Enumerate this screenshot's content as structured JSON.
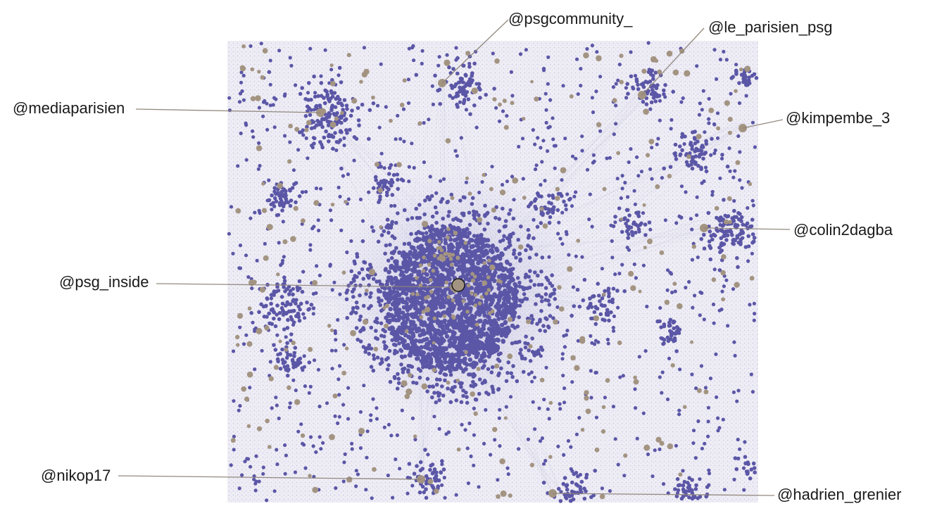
{
  "colors": {
    "background": "#ffffff",
    "edge_haze": "#c9c7e0",
    "account_node": "#5b56a6",
    "hub_node": "#a39482",
    "leader_line": "#8d8478",
    "label_text": "#1a1a1a"
  },
  "network": {
    "central_hub": "@psg_inside"
  },
  "labels": [
    {
      "id": "psgcommunity",
      "text": "@psgcommunity_"
    },
    {
      "id": "le_parisien_psg",
      "text": "@le_parisien_psg"
    },
    {
      "id": "mediaparisien",
      "text": "@mediaparisien"
    },
    {
      "id": "kimpembe",
      "text": "@kimpembe_3"
    },
    {
      "id": "colin2dagba",
      "text": "@colin2dagba"
    },
    {
      "id": "psg_inside",
      "text": "@psg_inside"
    },
    {
      "id": "nikop17",
      "text": "@nikop17"
    },
    {
      "id": "hadrien_grenier",
      "text": "@hadrien_grenier"
    }
  ]
}
